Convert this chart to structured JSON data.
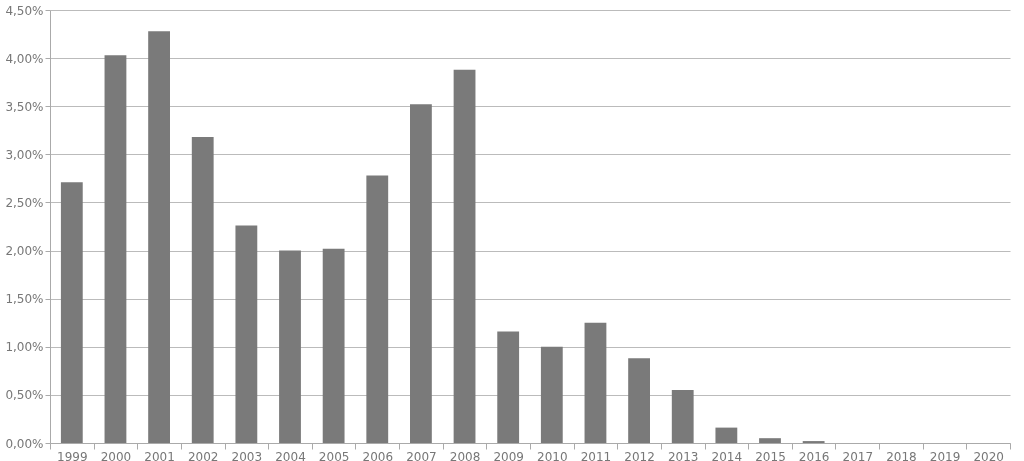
{
  "chart_data": {
    "type": "bar",
    "categories": [
      "1999",
      "2000",
      "2001",
      "2002",
      "2003",
      "2004",
      "2005",
      "2006",
      "2007",
      "2008",
      "2009",
      "2010",
      "2011",
      "2012",
      "2013",
      "2014",
      "2015",
      "2016",
      "2017",
      "2018",
      "2019",
      "2020"
    ],
    "values": [
      2.71,
      4.03,
      4.28,
      3.18,
      2.26,
      2.0,
      2.02,
      2.78,
      3.52,
      3.88,
      1.16,
      1.0,
      1.25,
      0.88,
      0.55,
      0.16,
      0.05,
      0.02,
      0,
      0,
      0,
      0
    ],
    "color": "#7a7a7a",
    "ylim": [
      0,
      4.5
    ],
    "yticks": [
      {
        "value": 0,
        "label": "0,00%"
      },
      {
        "value": 0.5,
        "label": "0,50%"
      },
      {
        "value": 1,
        "label": "1,00%"
      },
      {
        "value": 1.5,
        "label": "1,50%"
      },
      {
        "value": 2,
        "label": "2,00%"
      },
      {
        "value": 2.5,
        "label": "2,50%"
      },
      {
        "value": 3,
        "label": "3,00%"
      },
      {
        "value": 3.5,
        "label": "3,50%"
      },
      {
        "value": 4,
        "label": "4,00%"
      },
      {
        "value": 4.5,
        "label": "4,50%"
      }
    ],
    "grid": "y"
  }
}
